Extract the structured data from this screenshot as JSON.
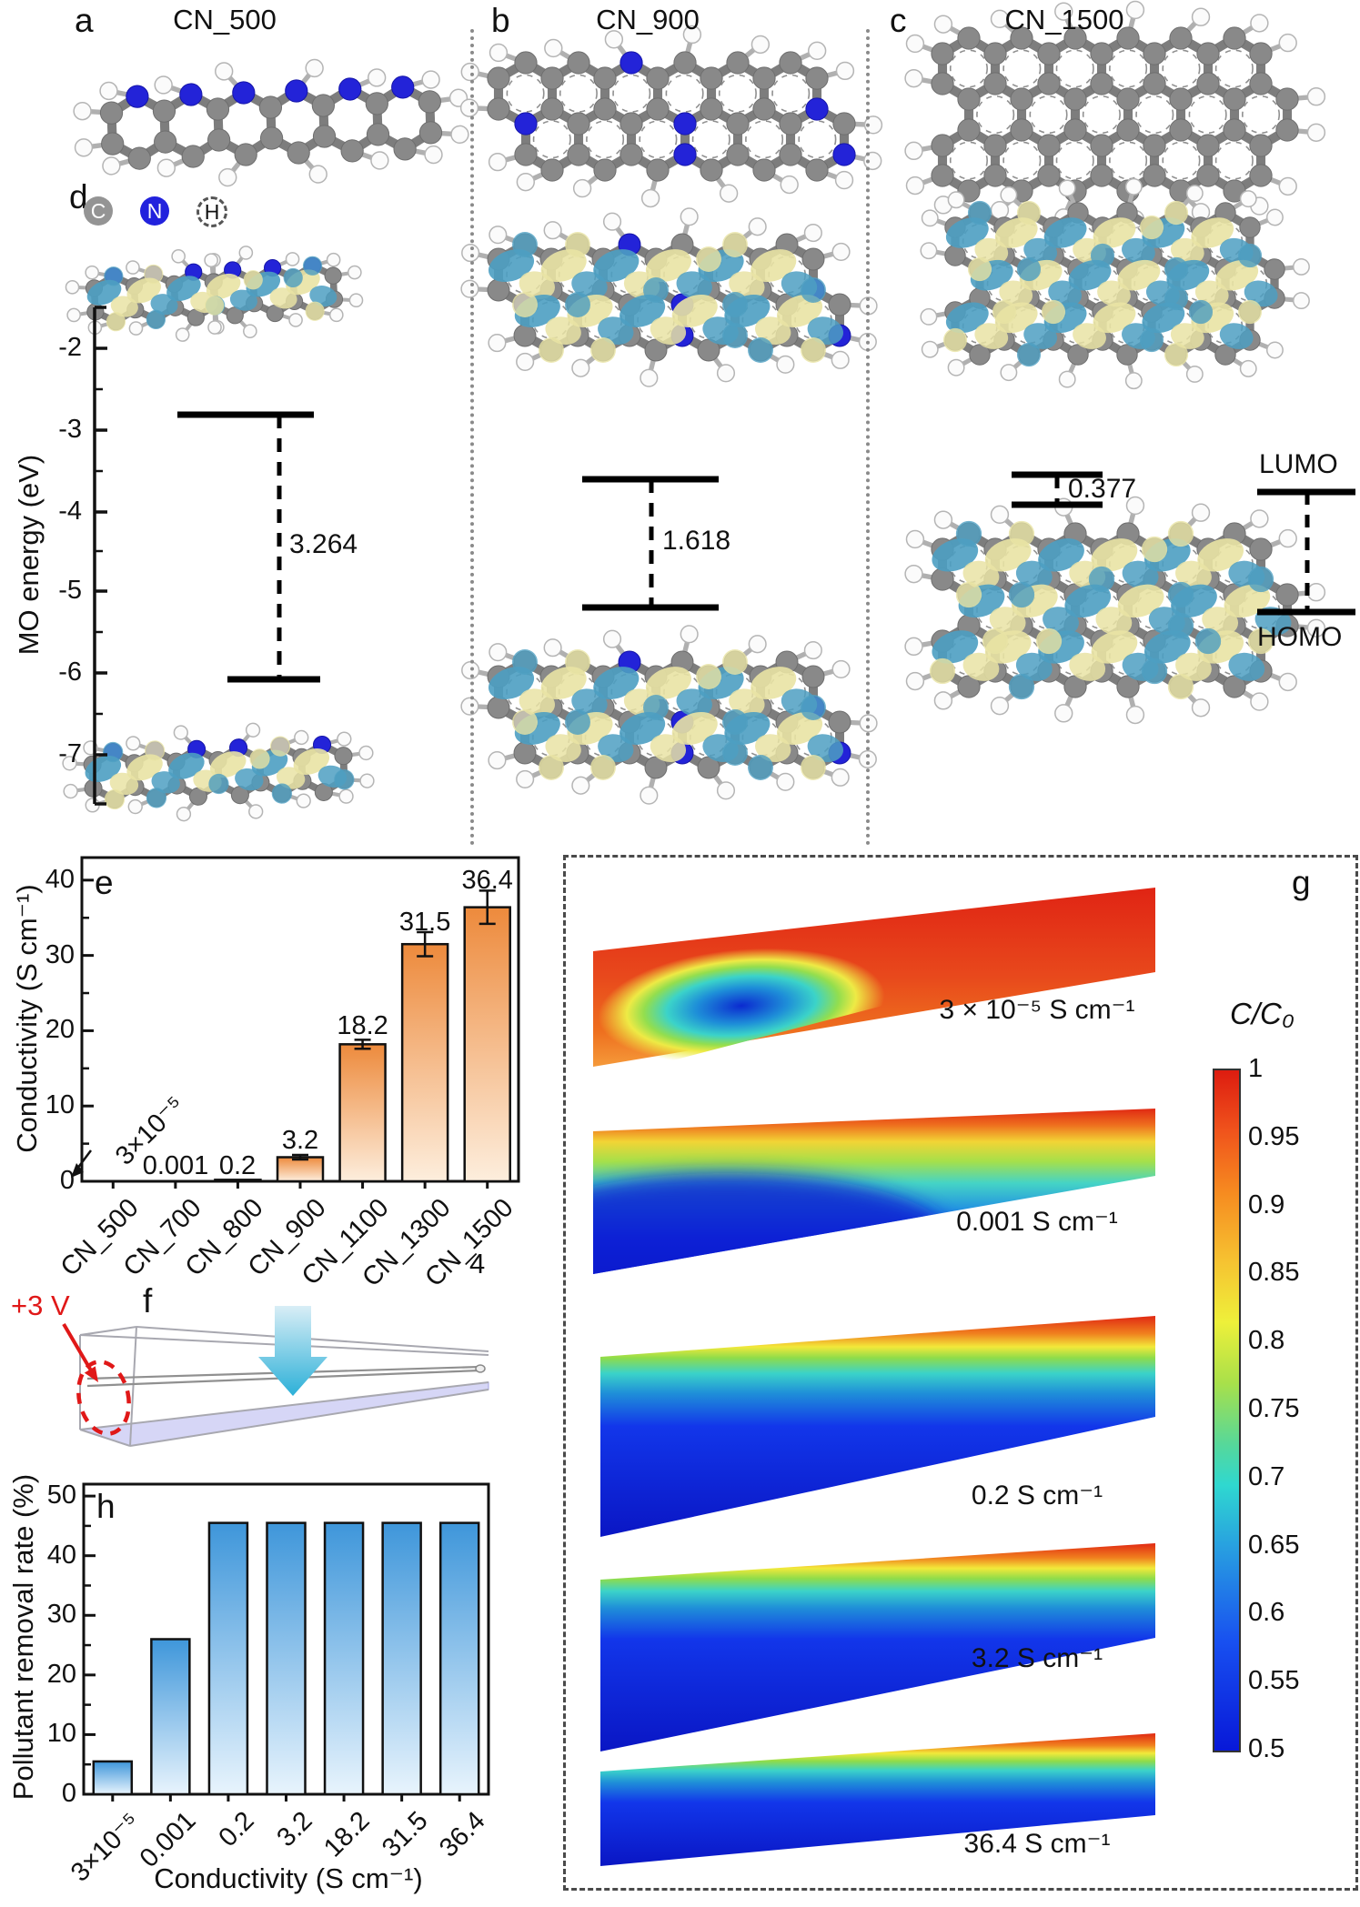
{
  "figure": {
    "panel_a": {
      "label": "a",
      "title": "CN_500"
    },
    "panel_b": {
      "label": "b",
      "title": "CN_900"
    },
    "panel_c": {
      "label": "c",
      "title": "CN_1500"
    },
    "legend": {
      "items": [
        {
          "symbol": "C",
          "color": "#949494"
        },
        {
          "symbol": "N",
          "color": "#2222dd"
        },
        {
          "symbol": "H",
          "color": "#ffffff"
        }
      ]
    },
    "panel_d": {
      "label": "d",
      "y_axis_label": "MO energy (eV)",
      "y_ticks": [
        "-2",
        "-3",
        "-4",
        "-5",
        "-6",
        "-7"
      ],
      "gaps": [
        {
          "molecule": "CN_500",
          "value": "3.264"
        },
        {
          "molecule": "CN_900",
          "value": "1.618"
        },
        {
          "molecule": "CN_1500",
          "value": "0.377"
        }
      ],
      "lumo": "LUMO",
      "homo": "HOMO"
    },
    "panel_e": {
      "label": "e",
      "stray": "4"
    },
    "panel_f": {
      "label": "f",
      "voltage": "+3 V"
    },
    "panel_g": {
      "label": "g"
    },
    "panel_h": {
      "label": "h"
    }
  },
  "chart_data": [
    {
      "id": "conductivity",
      "type": "bar",
      "ylabel": "Conductivity (S cm⁻¹)",
      "categories": [
        "CN_500",
        "CN_700",
        "CN_800",
        "CN_900",
        "CN_1100",
        "CN_1300",
        "CN_1500"
      ],
      "values": [
        3e-05,
        0.001,
        0.2,
        3.2,
        18.2,
        31.5,
        36.4
      ],
      "value_labels": [
        "3×10⁻⁵",
        "0.001",
        "0.2",
        "3.2",
        "18.2",
        "31.5",
        "36.4"
      ],
      "errors": [
        0,
        0,
        0,
        0.3,
        0.6,
        1.6,
        2.2
      ],
      "ylim": [
        0,
        43
      ],
      "yticks": [
        0,
        10,
        20,
        30,
        40
      ],
      "grid": false,
      "legend_position": "none",
      "bar_color_top": "#ed8a3c",
      "bar_color_bottom": "#fdeedd"
    },
    {
      "id": "removal",
      "type": "bar",
      "xlabel": "Conductivity (S cm⁻¹)",
      "ylabel": "Pollutant removal rate (%)",
      "categories": [
        "3×10⁻⁵",
        "0.001",
        "0.2",
        "3.2",
        "18.2",
        "31.5",
        "36.4"
      ],
      "values": [
        5.5,
        26,
        45.5,
        45.5,
        45.5,
        45.5,
        45.5
      ],
      "ylim": [
        0,
        52
      ],
      "yticks": [
        0,
        10,
        20,
        30,
        40,
        50
      ],
      "grid": false,
      "legend_position": "none",
      "bar_color_top": "#3e96da",
      "bar_color_bottom": "#e8f4fd"
    },
    {
      "id": "simulation",
      "type": "heatmap",
      "plots": [
        {
          "label": "3 × 10⁻⁵ S cm⁻¹"
        },
        {
          "label": "0.001 S cm⁻¹"
        },
        {
          "label": "0.2 S cm⁻¹"
        },
        {
          "label": "3.2 S cm⁻¹"
        },
        {
          "label": "36.4 S cm⁻¹"
        }
      ],
      "colorbar": {
        "title": "C/C₀",
        "ticks": [
          "1",
          "0.95",
          "0.9",
          "0.85",
          "0.8",
          "0.75",
          "0.7",
          "0.65",
          "0.6",
          "0.55",
          "0.5"
        ],
        "range": [
          0.5,
          1
        ]
      }
    }
  ]
}
